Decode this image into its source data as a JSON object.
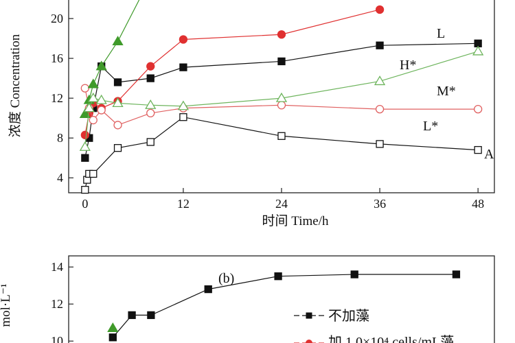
{
  "chart_data": [
    {
      "type": "line",
      "title": "",
      "panel_label": "A",
      "xlabel": "时间 Time/h",
      "ylabel": "浓度 Concentration",
      "xlim": [
        -2,
        50
      ],
      "ylim": [
        2.5,
        22
      ],
      "x_ticks": [
        0,
        12,
        24,
        36,
        48
      ],
      "y_ticks": [
        4,
        8,
        12,
        16,
        20
      ],
      "grid": false,
      "series": [
        {
          "name": "L",
          "color": "#111111",
          "marker": "square",
          "filled": true,
          "x": [
            0,
            0.5,
            1,
            2,
            4,
            8,
            12,
            24,
            36,
            48
          ],
          "y": [
            6.0,
            8.0,
            11.0,
            15.2,
            13.6,
            14.0,
            15.1,
            15.7,
            17.3,
            17.5
          ]
        },
        {
          "name": "L*",
          "color": "#111111",
          "marker": "square",
          "filled": false,
          "x": [
            0,
            0.25,
            0.5,
            1,
            4,
            8,
            12,
            24,
            36,
            48
          ],
          "y": [
            2.8,
            3.8,
            4.4,
            4.4,
            7.0,
            7.6,
            10.1,
            8.2,
            7.4,
            6.8
          ]
        },
        {
          "name": "",
          "color": "#e03030",
          "marker": "circle",
          "filled": true,
          "x": [
            0,
            0.5,
            1,
            2,
            4,
            8,
            12,
            24,
            36
          ],
          "y": [
            8.3,
            10.5,
            11.5,
            11.0,
            11.7,
            15.2,
            17.9,
            18.4,
            20.9
          ]
        },
        {
          "name": "M*",
          "color": "#e06060",
          "marker": "circle",
          "filled": false,
          "x": [
            0,
            0.5,
            1,
            2,
            4,
            8,
            12,
            24,
            36,
            48
          ],
          "y": [
            13.0,
            11.0,
            9.8,
            10.8,
            9.3,
            10.5,
            11.0,
            11.3,
            10.9,
            10.9
          ]
        },
        {
          "name": "",
          "color": "#3f9a2a",
          "marker": "triangle",
          "filled": true,
          "x": [
            0,
            0.5,
            1,
            2,
            4
          ],
          "y": [
            10.4,
            11.8,
            13.4,
            15.2,
            17.7
          ]
        },
        {
          "name": "H*",
          "color": "#6db45c",
          "marker": "triangle",
          "filled": false,
          "x": [
            0,
            0.5,
            1,
            2,
            4,
            8,
            12,
            24,
            36,
            48
          ],
          "y": [
            7.1,
            11.0,
            12.0,
            11.8,
            11.5,
            11.3,
            11.2,
            12.0,
            13.7,
            16.7
          ]
        }
      ]
    },
    {
      "type": "line",
      "title": "",
      "panel_label": "(b)",
      "ylabel": "mol·L⁻¹",
      "ylim": [
        9.6,
        14.6
      ],
      "y_ticks": [
        10,
        12,
        14
      ],
      "legend_position": "right",
      "series": [
        {
          "name": "不加藻",
          "color": "#111111",
          "marker": "square",
          "filled": true,
          "x": [
            0,
            6,
            12,
            30,
            52,
            76,
            108
          ],
          "y": [
            10.2,
            11.4,
            11.4,
            12.8,
            13.5,
            13.6,
            13.6
          ]
        },
        {
          "name": "加 1.0×10⁴ cells/mL藻",
          "color": "#e03030",
          "marker": "circle",
          "filled": true,
          "x": [],
          "y": []
        },
        {
          "name": "",
          "color": "#3f9a2a",
          "marker": "triangle",
          "filled": true,
          "x": [
            0
          ],
          "y": [
            10.7
          ]
        }
      ]
    }
  ],
  "labels": {
    "top": {
      "y_axis_title": "浓度 Concentration",
      "x_axis_title": "时间 Time/h",
      "panel": "A",
      "series_L": "L",
      "series_H_star": "H*",
      "series_M_star": "M*",
      "series_L_star": "L*"
    },
    "bottom": {
      "panel": "(b)",
      "y_axis_title": "mol·L⁻¹",
      "legend_1": "不加藻",
      "legend_2": "加 1.0×10⁴ cells/mL藻"
    }
  }
}
